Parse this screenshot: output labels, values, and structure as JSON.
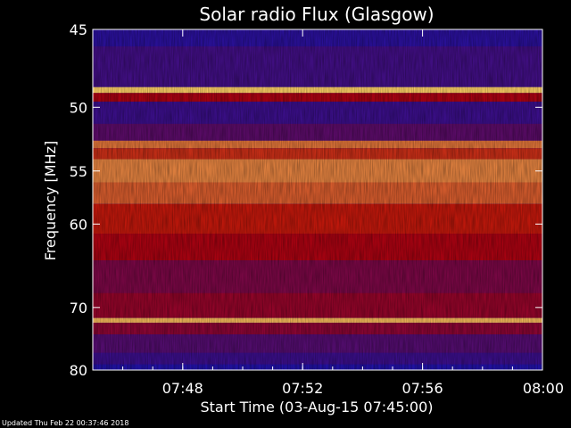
{
  "chart_data": {
    "type": "heatmap",
    "title": "Solar radio Flux (Glasgow)",
    "xlabel": "Start Time (03-Aug-15 07:45:00)",
    "ylabel": "Frequency [MHz]",
    "x_ticks": [
      "07:48",
      "07:52",
      "07:56",
      "08:00"
    ],
    "x_tick_minutes": [
      3,
      7,
      11,
      15
    ],
    "xlim_minutes": [
      0,
      15
    ],
    "y_ticks": [
      45,
      50,
      55,
      60,
      70,
      80
    ],
    "ylim": [
      45,
      80
    ],
    "y_scale": "reciprocal",
    "colormap": "blue-red-yellow",
    "colors": {
      "low": "#1a12a8",
      "mid": "#b40000",
      "high": "#ffe26e",
      "background": "#000000"
    },
    "bands": [
      {
        "from": 44.8,
        "to": 46.0,
        "level": 0.05
      },
      {
        "from": 46.0,
        "to": 48.6,
        "level": 0.12
      },
      {
        "from": 48.6,
        "to": 49.0,
        "level": 0.95
      },
      {
        "from": 49.0,
        "to": 49.6,
        "level": 0.45
      },
      {
        "from": 49.6,
        "to": 51.2,
        "level": 0.1
      },
      {
        "from": 51.2,
        "to": 52.5,
        "level": 0.2
      },
      {
        "from": 52.5,
        "to": 53.1,
        "level": 0.75
      },
      {
        "from": 53.1,
        "to": 54.0,
        "level": 0.6
      },
      {
        "from": 54.0,
        "to": 56.0,
        "level": 0.78
      },
      {
        "from": 56.0,
        "to": 58.0,
        "level": 0.7
      },
      {
        "from": 58.0,
        "to": 61.0,
        "level": 0.55
      },
      {
        "from": 61.0,
        "to": 64.0,
        "level": 0.45
      },
      {
        "from": 64.0,
        "to": 68.0,
        "level": 0.3
      },
      {
        "from": 68.0,
        "to": 71.5,
        "level": 0.38
      },
      {
        "from": 71.5,
        "to": 72.2,
        "level": 0.9
      },
      {
        "from": 72.2,
        "to": 74.0,
        "level": 0.35
      },
      {
        "from": 74.0,
        "to": 77.0,
        "level": 0.18
      },
      {
        "from": 77.0,
        "to": 79.0,
        "level": 0.1
      },
      {
        "from": 79.0,
        "to": 80.2,
        "level": 0.02
      }
    ]
  },
  "footer": {
    "updated": "Updated Thu Feb 22 00:37:46 2018"
  }
}
